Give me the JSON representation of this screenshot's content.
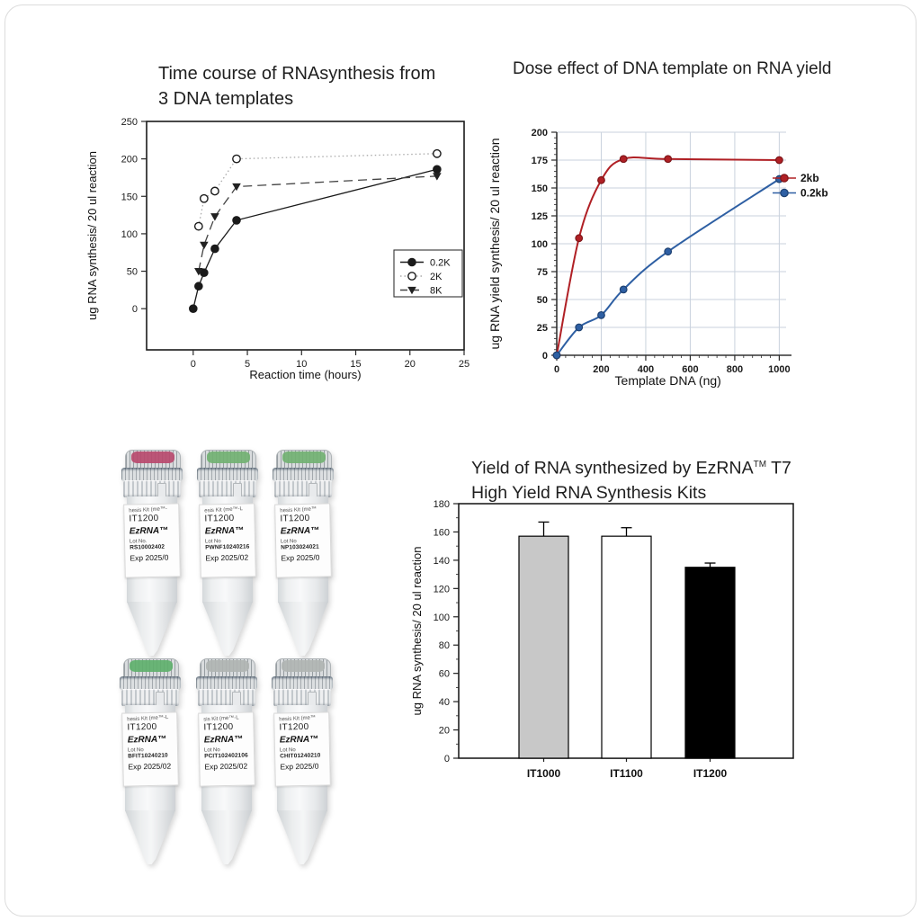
{
  "chart_data": [
    {
      "id": "time-course",
      "type": "line",
      "title": "Time course of RNAsynthesis from 3 DNA templates",
      "title_lines": [
        "Time course of RNAsynthesis from",
        "3 DNA templates"
      ],
      "xlabel": "Reaction time (hours)",
      "ylabel": "ug RNA synthesis/ 20 ul reaction",
      "xticks": [
        0,
        5,
        10,
        15,
        20,
        25
      ],
      "yticks": [
        0,
        50,
        100,
        150,
        200,
        250
      ],
      "xlim": [
        0,
        25
      ],
      "ylim": [
        0,
        250
      ],
      "grid": false,
      "legend_position": "inside-right-box",
      "series": [
        {
          "name": "0.2K",
          "marker": "filled-circle",
          "line": "solid",
          "color": "#1a1a1a",
          "line_color": "#1a1a1a",
          "x": [
            0,
            0.5,
            1,
            2,
            4,
            22.5
          ],
          "y": [
            0,
            30,
            48,
            80,
            118,
            186
          ]
        },
        {
          "name": "2K",
          "marker": "open-circle",
          "line": "dotted",
          "color": "#1a1a1a",
          "line_color": "#aaaaaa",
          "x": [
            0.5,
            1,
            2,
            4,
            22.5
          ],
          "y": [
            110,
            147,
            157,
            200,
            207
          ]
        },
        {
          "name": "8K",
          "marker": "filled-triangle-down",
          "line": "dashed",
          "color": "#222222",
          "line_color": "#444444",
          "x": [
            0.5,
            1,
            2,
            4,
            22.5
          ],
          "y": [
            50,
            85,
            123,
            163,
            177
          ]
        }
      ]
    },
    {
      "id": "dose-effect",
      "type": "line",
      "title": "Dose effect of DNA template on RNA yield",
      "xlabel": "Template DNA (ng)",
      "ylabel": "ug RNA yield synthesis/ 20 ul reaction",
      "xticks": [
        0,
        200,
        400,
        600,
        800,
        1000
      ],
      "yticks": [
        0,
        25,
        50,
        75,
        100,
        125,
        150,
        175,
        200
      ],
      "xlim": [
        0,
        1000
      ],
      "ylim": [
        0,
        200
      ],
      "grid": true,
      "grid_color": "#c9d2dd",
      "legend_position": "right",
      "series": [
        {
          "name": "2kb",
          "marker": "filled-circle",
          "line": "solid",
          "color": "#b02025",
          "line_color": "#b02025",
          "edge_color": "#7c1518",
          "x": [
            0,
            100,
            200,
            300,
            500,
            1000
          ],
          "y": [
            0,
            105,
            157,
            176,
            176,
            175
          ]
        },
        {
          "name": "0.2kb",
          "marker": "filled-circle",
          "line": "solid",
          "color": "#2e5fa3",
          "line_color": "#2e5fa3",
          "edge_color": "#1d4070",
          "x": [
            0,
            100,
            200,
            300,
            500,
            1000
          ],
          "y": [
            0,
            25,
            36,
            59,
            93,
            158
          ]
        }
      ]
    },
    {
      "id": "kit-yield",
      "type": "bar",
      "title": "Yield of RNA synthesized by EzRNA™ T7 High Yield RNA Synthesis Kits",
      "title_prefix": "Yield of RNA synthesized by EzRNA",
      "title_tm": "TM",
      "title_suffix": " T7",
      "title_line2": "High Yield RNA Synthesis Kits",
      "ylabel": "ug RNA synthesis/ 20 ul reaction",
      "categories": [
        "IT1000",
        "IT1100",
        "IT1200"
      ],
      "values": [
        157,
        157,
        135
      ],
      "errors": [
        10,
        6,
        3
      ],
      "bar_colors": [
        "#c8c8c8",
        "#ffffff",
        "#000000"
      ],
      "yticks": [
        0,
        20,
        40,
        60,
        80,
        100,
        120,
        140,
        160,
        180
      ],
      "ylim": [
        0,
        180
      ],
      "grid": false
    }
  ],
  "tubes": {
    "items": [
      {
        "cap_color": "#b84a6e",
        "top_text": "hesis Kit (me™-",
        "model": "IT1200",
        "brand": "EzRNA™",
        "lot_label": "Lot No.",
        "lot": "RS10002402",
        "exp": "Exp 2025/0"
      },
      {
        "cap_color": "#72b172",
        "top_text": "esis Kit (me™-L",
        "model": "IT1200",
        "brand": "EzRNA™",
        "lot_label": "Lot No",
        "lot": "PWNF10240216",
        "exp": "Exp 2025/02"
      },
      {
        "cap_color": "#72b172",
        "top_text": "hesis Kit (me™",
        "model": "IT1200",
        "brand": "EzRNA™",
        "lot_label": "Lot No",
        "lot": "NP103024021",
        "exp": "Exp 2025/0"
      },
      {
        "cap_color": "#5fb06d",
        "top_text": "hesis Kit (me™-L",
        "model": "IT1200",
        "brand": "EzRNA™",
        "lot_label": "Lot No",
        "lot": "BFIT10240210",
        "exp": "Exp 2025/02"
      },
      {
        "cap_color": "#b0b4b2",
        "top_text": "sis Kit (me™-L",
        "model": "IT1200",
        "brand": "EzRNA™",
        "lot_label": "Lot No",
        "lot": "PCIT102402106",
        "exp": "Exp 2025/02"
      },
      {
        "cap_color": "#b0b4b2",
        "top_text": "hesis Kit (me™",
        "model": "IT1200",
        "brand": "EzRNA™",
        "lot_label": "Lot No",
        "lot": "CHIT01240210",
        "exp": "Exp 2025/0"
      }
    ]
  }
}
